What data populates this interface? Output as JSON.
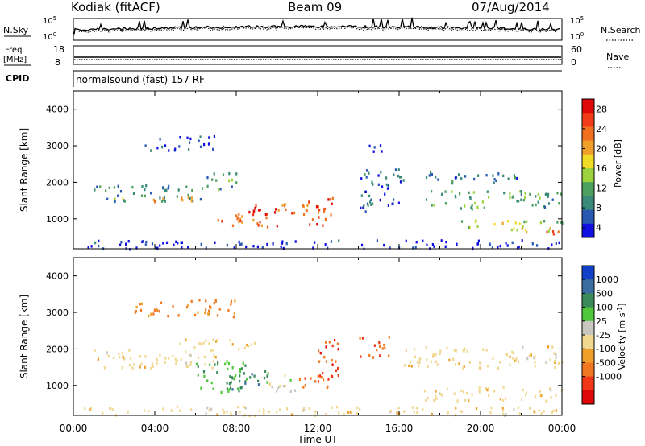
{
  "header": {
    "station": "Kodiak (fitACF)",
    "beam": "Beam 09",
    "date": "07/Aug/2014"
  },
  "side_labels": {
    "nsky": "N.Sky",
    "nsearch": "N.Search",
    "freq_l1": "Freq.",
    "freq_l2": "[MHz]",
    "nave": "Nave",
    "cpid": "CPID",
    "cpid_value": "normalsound (fast) 157 RF"
  },
  "strip_ticks": {
    "noise_left": [
      "10^5",
      "10^0"
    ],
    "noise_right": [
      "10^5",
      "10^0"
    ],
    "freq_left": [
      "18",
      "8"
    ],
    "freq_right": [
      "60",
      "0"
    ]
  },
  "chart_data": [
    {
      "type": "heatmap",
      "name": "power",
      "ylabel": "Slant Range [km]",
      "xlabel": "Time UT",
      "ylim": [
        180,
        4500
      ],
      "yticks": [
        "1000",
        "2000",
        "3000",
        "4000"
      ],
      "xticks": [
        "00:00",
        "04:00",
        "08:00",
        "12:00",
        "16:00",
        "20:00",
        "00:00"
      ],
      "colorbar": {
        "label": "Power [dB]",
        "ticks": [
          "4",
          "8",
          "12",
          "16",
          "20",
          "24",
          "28"
        ],
        "colors": [
          "#1010e0",
          "#2858b0",
          "#3a8a7a",
          "#4ca060",
          "#9cd23c",
          "#f0dc28",
          "#f0a028",
          "#f07020",
          "#f03c18",
          "#e00808"
        ]
      },
      "bands": [
        {
          "t0": 1.0,
          "t1": 6.5,
          "r0": 1500,
          "r1": 1950,
          "p": 9
        },
        {
          "t0": 2.0,
          "t1": 6.0,
          "r0": 1500,
          "r1": 1650,
          "p": 19
        },
        {
          "t0": 6.5,
          "t1": 8.0,
          "r0": 1800,
          "r1": 2350,
          "p": 11
        },
        {
          "t0": 7.0,
          "t1": 9.5,
          "r0": 800,
          "r1": 1200,
          "p": 23
        },
        {
          "t0": 8.5,
          "t1": 10.0,
          "r0": 800,
          "r1": 1400,
          "p": 27
        },
        {
          "t0": 10.0,
          "t1": 12.5,
          "r0": 1050,
          "r1": 1450,
          "p": 22
        },
        {
          "t0": 11.5,
          "t1": 12.7,
          "r0": 850,
          "r1": 1600,
          "p": 26
        },
        {
          "t0": 3.5,
          "t1": 7.0,
          "r0": 2900,
          "r1": 3300,
          "p": 5
        },
        {
          "t0": 14.0,
          "t1": 16.0,
          "r0": 1200,
          "r1": 2400,
          "p": 7
        },
        {
          "t0": 14.5,
          "t1": 15.5,
          "r0": 2800,
          "r1": 3100,
          "p": 5
        },
        {
          "t0": 17.0,
          "t1": 24.0,
          "r0": 1300,
          "r1": 1800,
          "p": 11
        },
        {
          "t0": 19.0,
          "t1": 24.0,
          "r0": 700,
          "r1": 1000,
          "p": 15
        },
        {
          "t0": 22.0,
          "t1": 24.0,
          "r0": 600,
          "r1": 800,
          "p": 23
        },
        {
          "t0": 16.0,
          "t1": 22.0,
          "r0": 2000,
          "r1": 2300,
          "p": 7
        },
        {
          "t0": 0.5,
          "t1": 24.0,
          "r0": 200,
          "r1": 450,
          "p": 4
        }
      ]
    },
    {
      "type": "heatmap",
      "name": "velocity",
      "ylabel": "Slant Range [km]",
      "xlabel": "Time UT",
      "ylim": [
        180,
        4500
      ],
      "yticks": [
        "1000",
        "2000",
        "3000",
        "4000"
      ],
      "xticks": [
        "00:00",
        "04:00",
        "08:00",
        "12:00",
        "16:00",
        "20:00",
        "00:00"
      ],
      "colorbar": {
        "label": "Velocity [m s^-1]",
        "ticks": [
          "1000",
          "500",
          "100",
          "25",
          "-25",
          "-100",
          "-500",
          "-1000"
        ],
        "colors": [
          "#1040c8",
          "#3a6ea0",
          "#3a8a5a",
          "#50c83c",
          "#c8c8c0",
          "#f0d890",
          "#f0a028",
          "#f07820",
          "#f03818",
          "#e00808"
        ]
      },
      "bands": [
        {
          "t0": 0.5,
          "t1": 7.0,
          "r0": 1500,
          "r1": 2000,
          "v": 0
        },
        {
          "t0": 6.0,
          "t1": 8.5,
          "r0": 800,
          "r1": 1700,
          "v": 250
        },
        {
          "t0": 7.5,
          "t1": 9.5,
          "r0": 900,
          "r1": 1600,
          "v": 400
        },
        {
          "t0": 9.5,
          "t1": 11.0,
          "r0": 850,
          "r1": 1400,
          "v": 60
        },
        {
          "t0": 11.0,
          "t1": 13.0,
          "r0": 950,
          "r1": 1400,
          "v": -300
        },
        {
          "t0": 12.0,
          "t1": 13.0,
          "r0": 1100,
          "r1": 2300,
          "v": -400
        },
        {
          "t0": 14.0,
          "t1": 15.5,
          "r0": 1800,
          "r1": 2400,
          "v": -250
        },
        {
          "t0": 16.0,
          "t1": 24.0,
          "r0": 1500,
          "r1": 2100,
          "v": 0
        },
        {
          "t0": 17.0,
          "t1": 24.0,
          "r0": 600,
          "r1": 1000,
          "v": 0
        },
        {
          "t0": 5.0,
          "t1": 9.0,
          "r0": 2000,
          "r1": 2300,
          "v": 0
        },
        {
          "t0": 3.0,
          "t1": 8.0,
          "r0": 2900,
          "r1": 3400,
          "v": -150
        },
        {
          "t0": 0.5,
          "t1": 24.0,
          "r0": 200,
          "r1": 450,
          "v": 0
        }
      ]
    }
  ]
}
